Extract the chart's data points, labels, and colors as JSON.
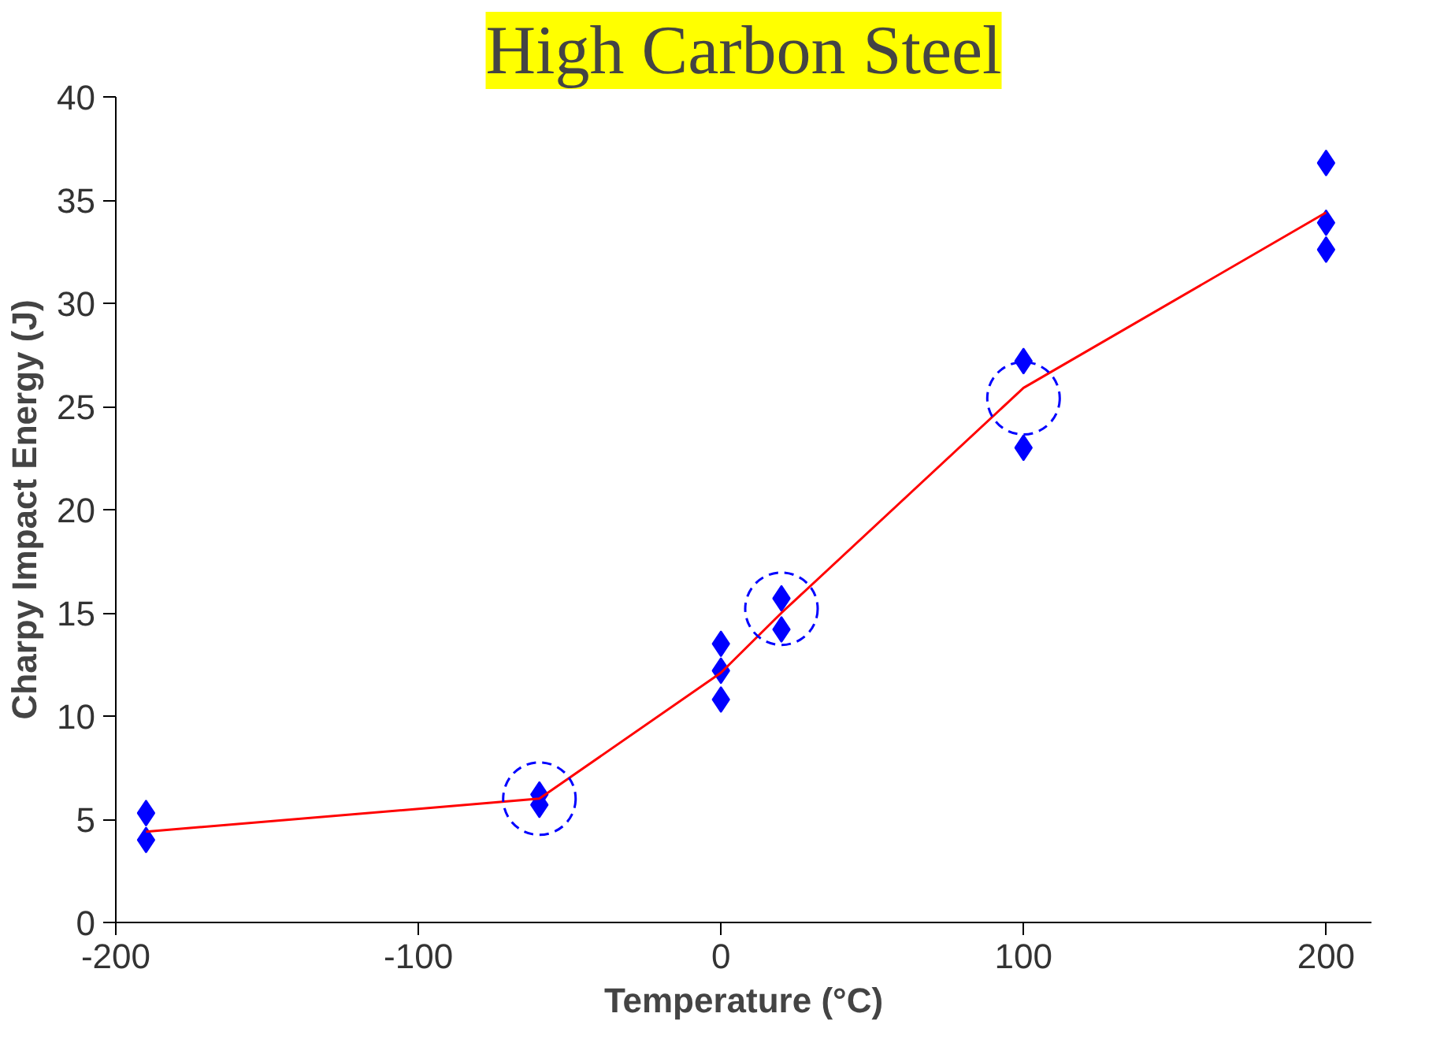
{
  "chart_data": {
    "type": "scatter",
    "title": "High Carbon Steel",
    "xlabel": "Temperature (°C)",
    "ylabel": "Charpy Impact Energy (J)",
    "xlim": [
      -200,
      215
    ],
    "xticks": [
      -200,
      -100,
      0,
      100,
      200
    ],
    "ylim": [
      0,
      40
    ],
    "yticks": [
      0,
      5,
      10,
      15,
      20,
      25,
      30,
      35,
      40
    ],
    "grid": false,
    "marker": "diamond",
    "series": [
      {
        "color": "#0000ff",
        "x": [
          -190,
          -190,
          -60,
          -60,
          0,
          0,
          0,
          20,
          20,
          100,
          100,
          200,
          200,
          200
        ],
        "values": [
          5.3,
          4.0,
          6.2,
          5.7,
          13.5,
          12.2,
          10.8,
          15.7,
          14.2,
          27.2,
          23.0,
          36.8,
          33.9,
          32.6
        ]
      },
      {
        "type": "line",
        "color": "#ff0000",
        "marker": "none",
        "line_style": "solid",
        "x": [
          -190,
          -60,
          0,
          20,
          100,
          200
        ],
        "values": [
          4.4,
          6.0,
          12.1,
          15.0,
          25.9,
          34.4
        ]
      },
      {
        "color": "#0000ff",
        "marker": "circle",
        "line_style": "dashed",
        "x": [
          -60,
          20,
          100
        ],
        "values": [
          6.0,
          15.2,
          25.4
        ]
      }
    ]
  }
}
